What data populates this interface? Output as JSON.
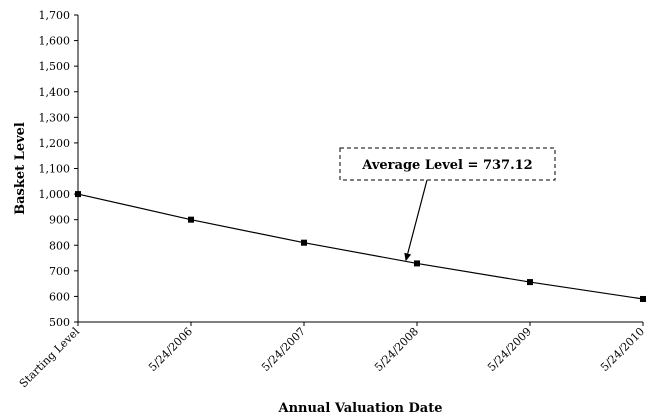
{
  "chart_data": {
    "type": "line",
    "categories": [
      "Starting Level",
      "5/24/2006",
      "5/24/2007",
      "5/24/2008",
      "5/24/2009",
      "5/24/2010"
    ],
    "series": [
      {
        "values": [
          1000,
          900,
          810,
          729,
          656,
          590
        ]
      }
    ],
    "xlabel": "Annual Valuation Date",
    "ylabel": "Basket Level",
    "ylim": [
      500,
      1700
    ],
    "yticks": [
      500,
      600,
      700,
      800,
      900,
      1000,
      1100,
      1200,
      1300,
      1400,
      1500,
      1600,
      1700
    ],
    "ytick_labels": [
      "500",
      "600",
      "700",
      "800",
      "900",
      "1,000",
      "1,100",
      "1,200",
      "1,300",
      "1,400",
      "1,500",
      "1,600",
      "1,700"
    ],
    "grid": false,
    "annotation": {
      "text": "Average Level = 737.12",
      "points_to_value": 737.12
    },
    "colors": {
      "line": "#000000",
      "marker": "#000000"
    }
  }
}
